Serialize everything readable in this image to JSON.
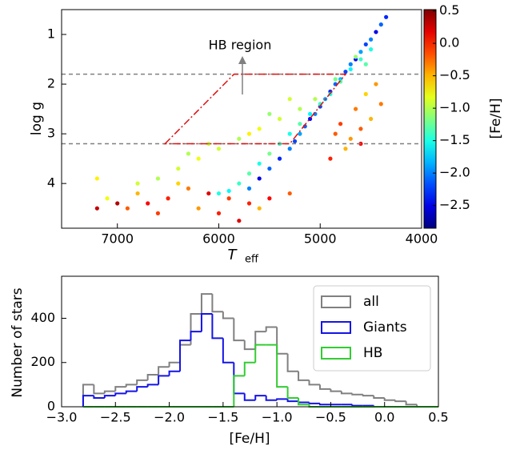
{
  "chart_data": [
    {
      "type": "scatter",
      "xlabel": "T",
      "xlabel_sub": "eff",
      "ylabel": "log g",
      "colorbar_label": "[Fe/H]",
      "annotation": "HB region",
      "cmap": "jet",
      "xlim": [
        7550,
        4000
      ],
      "ylim": [
        4.9,
        0.5
      ],
      "clim": [
        -2.85,
        0.52
      ],
      "xticks": [
        7000,
        6000,
        5000,
        4000
      ],
      "yticks": [
        1,
        2,
        3,
        4
      ],
      "cticks": [
        0.5,
        {
          "value": 0.0,
          "label": "0.0"
        },
        {
          "value": -0.5,
          "label": "−0.5"
        },
        {
          "value": -1.0,
          "label": "−1.0"
        },
        {
          "value": -1.5,
          "label": "−1.5"
        },
        {
          "value": -2.0,
          "label": "−2.0"
        },
        {
          "value": -2.5,
          "label": "−2.5"
        }
      ],
      "hlines": [
        1.8,
        3.2
      ],
      "hline_color": "#808080",
      "hb_region": {
        "teff": [
          6530,
          5850,
          4750,
          5300
        ],
        "logg": [
          3.2,
          1.8,
          1.8,
          3.2
        ],
        "color": "#dd1111"
      },
      "x": [
        4350,
        4400,
        4450,
        4500,
        4550,
        4600,
        4650,
        4700,
        4750,
        4800,
        4850,
        4900,
        4950,
        5000,
        5050,
        5100,
        5150,
        5200,
        5250,
        5300,
        5400,
        5500,
        5600,
        5700,
        4500,
        4600,
        4700,
        4800,
        4900,
        5000,
        5100,
        5200,
        5300,
        5400,
        5500,
        5600,
        5700,
        5800,
        5900,
        6000,
        4650,
        4550,
        4850,
        5050,
        5200,
        5400,
        5600,
        5800,
        6000,
        6200,
        6400,
        6600,
        5500,
        5700,
        6100,
        6300,
        5300,
        7200,
        7100,
        6800,
        4400,
        4500,
        4600,
        4700,
        4800,
        4550,
        4650,
        4750,
        4900,
        4450,
        4850,
        4600,
        5300,
        5500,
        5700,
        5900,
        6100,
        6300,
        6500,
        6700,
        6900,
        7200,
        6000,
        6200,
        5800,
        6600,
        7000,
        5600,
        6400,
        6800
      ],
      "y": [
        0.65,
        0.8,
        0.95,
        1.1,
        1.2,
        1.35,
        1.5,
        1.6,
        1.75,
        1.9,
        2.0,
        2.15,
        2.3,
        2.45,
        2.6,
        2.7,
        2.85,
        3.0,
        3.15,
        3.3,
        3.5,
        3.7,
        3.9,
        4.1,
        1.3,
        1.5,
        1.7,
        1.95,
        2.2,
        2.4,
        2.6,
        2.8,
        3.0,
        3.2,
        3.4,
        3.6,
        3.8,
        4.0,
        4.15,
        4.2,
        1.45,
        1.6,
        1.9,
        2.3,
        2.5,
        2.7,
        2.9,
        3.1,
        3.3,
        3.5,
        3.7,
        3.9,
        2.6,
        3.0,
        3.2,
        3.4,
        2.3,
        3.9,
        4.3,
        4.0,
        2.4,
        2.7,
        2.9,
        3.1,
        2.8,
        2.2,
        2.5,
        3.3,
        3.5,
        2.0,
        3.0,
        3.2,
        4.2,
        4.3,
        4.4,
        4.3,
        4.2,
        4.1,
        4.3,
        4.4,
        4.5,
        4.5,
        4.6,
        4.5,
        4.75,
        4.6,
        4.4,
        4.5,
        4.0,
        4.2
      ],
      "c": [
        -2.3,
        -2.1,
        -2.5,
        -2.0,
        -2.2,
        -1.9,
        -2.4,
        -2.0,
        -2.2,
        -1.8,
        -2.1,
        -2.3,
        -1.9,
        -2.2,
        -2.0,
        -2.4,
        -2.1,
        -1.9,
        -2.2,
        -2.0,
        -2.3,
        -2.1,
        -2.5,
        -2.0,
        -1.5,
        -1.4,
        -1.6,
        -1.3,
        -1.5,
        -1.4,
        -1.6,
        -1.3,
        -1.5,
        -1.4,
        -1.2,
        -1.5,
        -1.3,
        -1.4,
        -1.6,
        -1.5,
        -1.1,
        -1.3,
        -1.2,
        -1.0,
        -1.0,
        -0.9,
        -0.8,
        -1.0,
        -0.9,
        -0.8,
        -0.9,
        -1.0,
        -1.1,
        -0.7,
        -0.9,
        -1.0,
        -0.9,
        -0.7,
        -0.8,
        -0.9,
        -0.3,
        -0.5,
        -0.2,
        -0.4,
        -0.1,
        -0.6,
        -0.3,
        -0.5,
        0.0,
        -0.4,
        -0.2,
        0.1,
        -0.2,
        0.1,
        0.0,
        -0.1,
        0.2,
        -0.3,
        0.0,
        0.1,
        -0.2,
        0.3,
        0.0,
        -0.4,
        0.2,
        -0.1,
        0.35,
        -0.5,
        -0.6,
        -0.5
      ]
    },
    {
      "type": "histogram",
      "xlabel": "[Fe/H]",
      "ylabel": "Number of stars",
      "xlim": [
        -3.0,
        0.5
      ],
      "ylim": [
        0,
        590
      ],
      "xticks": [
        {
          "value": -3.0,
          "label": "−3.0"
        },
        {
          "value": -2.5,
          "label": "−2.5"
        },
        {
          "value": -2.0,
          "label": "−2.0"
        },
        {
          "value": -1.5,
          "label": "−1.5"
        },
        {
          "value": -1.0,
          "label": "−1.0"
        },
        {
          "value": -0.5,
          "label": "−0.5"
        },
        {
          "value": 0.0,
          "label": "0.0"
        },
        0.5
      ],
      "yticks": [
        0,
        200,
        400
      ],
      "legend": "upper right",
      "bins": [
        -2.8,
        -2.7,
        -2.6,
        -2.5,
        -2.4,
        -2.3,
        -2.2,
        -2.1,
        -2.0,
        -1.9,
        -1.8,
        -1.7,
        -1.6,
        -1.5,
        -1.4,
        -1.3,
        -1.2,
        -1.1,
        -1.0,
        -0.9,
        -0.8,
        -0.7,
        -0.6,
        -0.5,
        -0.4,
        -0.3,
        -0.2,
        -0.1,
        0.0,
        0.1,
        0.2,
        0.3,
        0.4,
        0.5
      ],
      "series": [
        {
          "name": "all",
          "color": "#808080",
          "values": [
            100,
            60,
            70,
            90,
            100,
            120,
            145,
            180,
            200,
            280,
            420,
            510,
            430,
            400,
            300,
            260,
            340,
            360,
            240,
            160,
            120,
            100,
            80,
            70,
            60,
            55,
            50,
            40,
            30,
            25,
            10,
            0,
            0
          ]
        },
        {
          "name": "Giants",
          "color": "#1414e6",
          "values": [
            50,
            40,
            50,
            60,
            70,
            90,
            100,
            140,
            160,
            300,
            340,
            420,
            310,
            200,
            60,
            30,
            50,
            30,
            35,
            25,
            20,
            15,
            10,
            10,
            10,
            5,
            5,
            0,
            0,
            0,
            0,
            0,
            0
          ]
        },
        {
          "name": "HB",
          "color": "#33cc33",
          "values": [
            0,
            0,
            0,
            0,
            0,
            0,
            0,
            0,
            0,
            0,
            0,
            0,
            0,
            0,
            140,
            200,
            280,
            280,
            90,
            40,
            10,
            0,
            0,
            0,
            0,
            0,
            0,
            0,
            0,
            0,
            0,
            0,
            0
          ]
        }
      ]
    }
  ]
}
